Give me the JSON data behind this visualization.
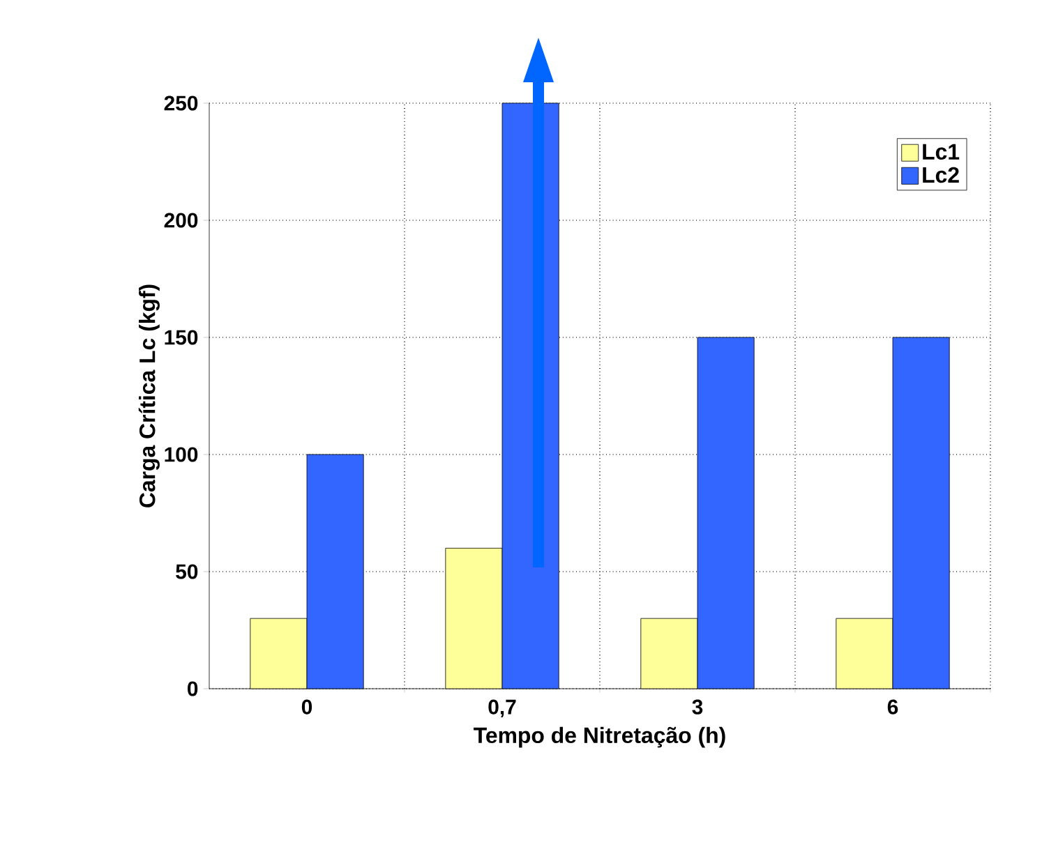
{
  "chart_data": {
    "type": "bar",
    "xlabel": "Tempo de Nitretação (h)",
    "ylabel": "Carga Crítica Lc (kgf)",
    "categories": [
      "0",
      "0,7",
      "3",
      "6"
    ],
    "series": [
      {
        "name": "Lc1",
        "color": "#ffff99",
        "values": [
          30,
          60,
          30,
          30
        ]
      },
      {
        "name": "Lc2",
        "color": "#3366ff",
        "values": [
          100,
          250,
          150,
          150
        ]
      }
    ],
    "ylim": [
      0,
      250
    ],
    "yticks": [
      0,
      50,
      100,
      150,
      200,
      250
    ],
    "grid": true,
    "legend": "top right"
  }
}
